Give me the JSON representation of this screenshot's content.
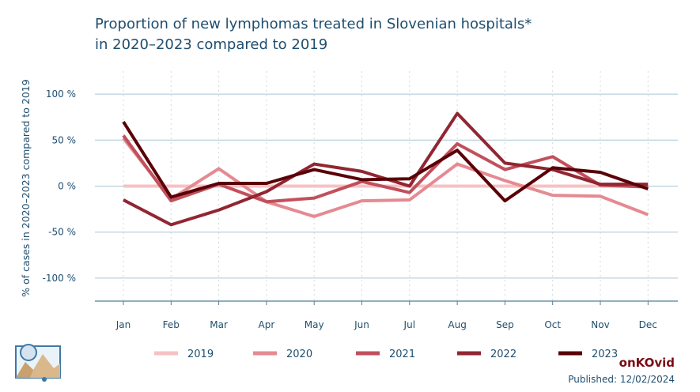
{
  "title_lines": [
    "Proportion of new lymphomas treated in Slovenian hospitals*",
    "in 2020–2023 compared to 2019"
  ],
  "brand": "onKOvid",
  "published": "Published: 12/02/2024",
  "chart_data": {
    "type": "line",
    "title": "Proportion of new lymphomas treated in Slovenian hospitals* in 2020–2023 compared to 2019",
    "xlabel": "",
    "ylabel": "% of cases in 2020–2023 compared to 2019",
    "categories": [
      "Jan",
      "Feb",
      "Mar",
      "Apr",
      "May",
      "Jun",
      "Jul",
      "Aug",
      "Sep",
      "Oct",
      "Nov",
      "Dec"
    ],
    "ylim": [
      -125,
      125
    ],
    "yticks": [
      100,
      50,
      0,
      -50,
      -100
    ],
    "ytick_labels": [
      "100 %",
      "50 %",
      "0 %",
      "-50 %",
      "-100 %"
    ],
    "grid": true,
    "legend_position": "bottom",
    "series": [
      {
        "name": "2019",
        "color": "#f6c1c4",
        "values": [
          0,
          0,
          0,
          0,
          0,
          0,
          0,
          0,
          0,
          0,
          0,
          0
        ]
      },
      {
        "name": "2020",
        "color": "#e58a91",
        "values": [
          52,
          -14,
          19,
          -17,
          -33,
          -16,
          -15,
          24,
          6,
          -10,
          -11,
          -31
        ]
      },
      {
        "name": "2021",
        "color": "#c1505c",
        "values": [
          55,
          -16,
          2,
          -17,
          -13,
          5,
          -7,
          46,
          18,
          32,
          1,
          -1
        ]
      },
      {
        "name": "2022",
        "color": "#912632",
        "values": [
          -15,
          -42,
          -26,
          -6,
          24,
          16,
          0,
          79,
          25,
          18,
          2,
          2
        ]
      },
      {
        "name": "2023",
        "color": "#5a0007",
        "values": [
          70,
          -12,
          3,
          3,
          18,
          7,
          8,
          39,
          -16,
          20,
          15,
          -3
        ]
      }
    ]
  }
}
